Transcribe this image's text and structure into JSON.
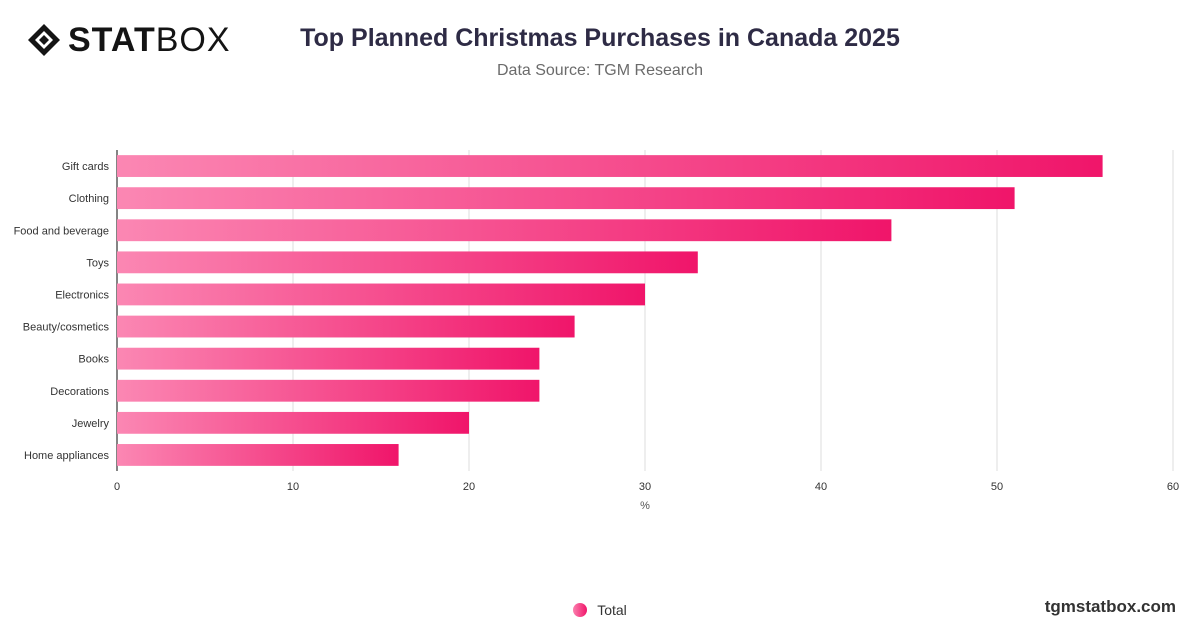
{
  "logo": {
    "bold": "STAT",
    "light": "BOX",
    "icon": "statbox-diamond-icon"
  },
  "title": "Top Planned Christmas Purchases in Canada 2025",
  "subtitle": "Data Source: TGM Research",
  "footer": "tgmstatbox.com",
  "legend": {
    "label": "Total"
  },
  "colors": {
    "bar_start": "#fb87b3",
    "bar_end": "#f0156a",
    "grid": "#dddddd",
    "axis": "#333333"
  },
  "chart_data": {
    "type": "bar",
    "orientation": "horizontal",
    "title": "Top Planned Christmas Purchases in Canada 2025",
    "subtitle": "Data Source: TGM Research",
    "xlabel": "%",
    "ylabel": "",
    "xlim": [
      0,
      60
    ],
    "xticks": [
      0,
      10,
      20,
      30,
      40,
      50,
      60
    ],
    "grid": true,
    "legend_position": "bottom",
    "categories": [
      "Gift cards",
      "Clothing",
      "Food and beverage",
      "Toys",
      "Electronics",
      "Beauty/cosmetics",
      "Books",
      "Decorations",
      "Jewelry",
      "Home appliances"
    ],
    "series": [
      {
        "name": "Total",
        "values": [
          56,
          51,
          44,
          33,
          30,
          26,
          24,
          24,
          20,
          16
        ]
      }
    ]
  }
}
